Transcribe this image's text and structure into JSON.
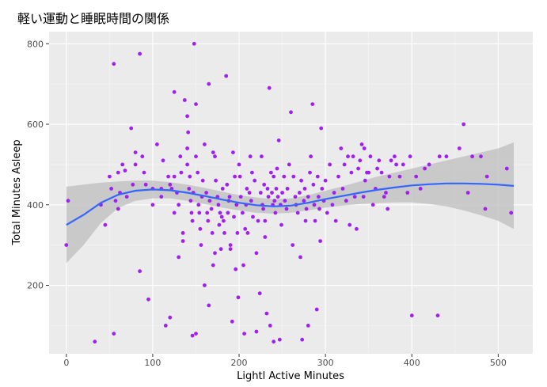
{
  "chart_data": {
    "type": "scatter",
    "title": "軽い運動と睡眠時間の関係",
    "xlabel": "Lightl Active Minutes",
    "ylabel": "Total Minutes Asleep",
    "xlim": [
      -20,
      540
    ],
    "ylim": [
      30,
      830
    ],
    "xticks": [
      0,
      100,
      200,
      300,
      400,
      500
    ],
    "yticks": [
      200,
      400,
      600,
      800
    ],
    "grid": true,
    "point_color": "#a020f0",
    "smooth_color": "#3366ff",
    "band_color": "#bdbdbd",
    "panel_background": "#ebebeb",
    "points": [
      [
        0,
        300
      ],
      [
        2,
        410
      ],
      [
        33,
        60
      ],
      [
        40,
        400
      ],
      [
        45,
        350
      ],
      [
        50,
        470
      ],
      [
        52,
        440
      ],
      [
        55,
        750
      ],
      [
        55,
        80
      ],
      [
        57,
        410
      ],
      [
        60,
        390
      ],
      [
        60,
        480
      ],
      [
        62,
        430
      ],
      [
        65,
        500
      ],
      [
        68,
        485
      ],
      [
        70,
        420
      ],
      [
        75,
        590
      ],
      [
        77,
        450
      ],
      [
        80,
        530
      ],
      [
        80,
        500
      ],
      [
        85,
        775
      ],
      [
        85,
        235
      ],
      [
        88,
        520
      ],
      [
        90,
        480
      ],
      [
        92,
        450
      ],
      [
        95,
        165
      ],
      [
        100,
        400
      ],
      [
        100,
        440
      ],
      [
        105,
        550
      ],
      [
        110,
        440
      ],
      [
        110,
        420
      ],
      [
        112,
        510
      ],
      [
        115,
        100
      ],
      [
        118,
        470
      ],
      [
        120,
        120
      ],
      [
        120,
        450
      ],
      [
        122,
        440
      ],
      [
        125,
        470
      ],
      [
        125,
        680
      ],
      [
        125,
        380
      ],
      [
        128,
        430
      ],
      [
        130,
        270
      ],
      [
        130,
        400
      ],
      [
        132,
        520
      ],
      [
        133,
        480
      ],
      [
        135,
        310
      ],
      [
        135,
        330
      ],
      [
        137,
        660
      ],
      [
        140,
        620
      ],
      [
        140,
        540
      ],
      [
        140,
        500
      ],
      [
        141,
        580
      ],
      [
        142,
        440
      ],
      [
        143,
        470
      ],
      [
        144,
        410
      ],
      [
        145,
        380
      ],
      [
        146,
        360
      ],
      [
        146,
        75
      ],
      [
        147,
        430
      ],
      [
        148,
        800
      ],
      [
        150,
        650
      ],
      [
        150,
        520
      ],
      [
        150,
        80
      ],
      [
        152,
        480
      ],
      [
        153,
        400
      ],
      [
        154,
        380
      ],
      [
        155,
        340
      ],
      [
        156,
        300
      ],
      [
        157,
        420
      ],
      [
        158,
        460
      ],
      [
        160,
        200
      ],
      [
        160,
        550
      ],
      [
        162,
        430
      ],
      [
        163,
        380
      ],
      [
        164,
        360
      ],
      [
        165,
        150
      ],
      [
        165,
        700
      ],
      [
        166,
        410
      ],
      [
        168,
        390
      ],
      [
        169,
        330
      ],
      [
        170,
        250
      ],
      [
        170,
        530
      ],
      [
        172,
        520
      ],
      [
        172,
        280
      ],
      [
        173,
        460
      ],
      [
        175,
        420
      ],
      [
        176,
        400
      ],
      [
        177,
        350
      ],
      [
        178,
        380
      ],
      [
        179,
        290
      ],
      [
        180,
        370
      ],
      [
        181,
        440
      ],
      [
        182,
        360
      ],
      [
        183,
        330
      ],
      [
        185,
        720
      ],
      [
        186,
        450
      ],
      [
        187,
        380
      ],
      [
        188,
        410
      ],
      [
        189,
        420
      ],
      [
        190,
        300
      ],
      [
        190,
        290
      ],
      [
        192,
        110
      ],
      [
        193,
        530
      ],
      [
        194,
        370
      ],
      [
        195,
        470
      ],
      [
        196,
        240
      ],
      [
        197,
        400
      ],
      [
        198,
        330
      ],
      [
        199,
        170
      ],
      [
        200,
        500
      ],
      [
        201,
        470
      ],
      [
        202,
        420
      ],
      [
        204,
        380
      ],
      [
        205,
        250
      ],
      [
        206,
        80
      ],
      [
        207,
        340
      ],
      [
        208,
        400
      ],
      [
        209,
        440
      ],
      [
        210,
        330
      ],
      [
        212,
        430
      ],
      [
        213,
        520
      ],
      [
        214,
        410
      ],
      [
        215,
        480
      ],
      [
        216,
        370
      ],
      [
        218,
        460
      ],
      [
        220,
        280
      ],
      [
        220,
        85
      ],
      [
        222,
        360
      ],
      [
        224,
        180
      ],
      [
        225,
        430
      ],
      [
        226,
        520
      ],
      [
        227,
        400
      ],
      [
        228,
        390
      ],
      [
        229,
        450
      ],
      [
        230,
        360
      ],
      [
        230,
        320
      ],
      [
        232,
        130
      ],
      [
        233,
        440
      ],
      [
        234,
        420
      ],
      [
        235,
        690
      ],
      [
        236,
        100
      ],
      [
        237,
        480
      ],
      [
        238,
        430
      ],
      [
        239,
        400
      ],
      [
        240,
        60
      ],
      [
        240,
        470
      ],
      [
        241,
        410
      ],
      [
        242,
        380
      ],
      [
        243,
        440
      ],
      [
        244,
        490
      ],
      [
        245,
        420
      ],
      [
        246,
        560
      ],
      [
        247,
        65
      ],
      [
        248,
        400
      ],
      [
        249,
        350
      ],
      [
        250,
        430
      ],
      [
        252,
        470
      ],
      [
        253,
        410
      ],
      [
        255,
        390
      ],
      [
        256,
        440
      ],
      [
        258,
        500
      ],
      [
        260,
        630
      ],
      [
        262,
        300
      ],
      [
        263,
        470
      ],
      [
        265,
        420
      ],
      [
        266,
        400
      ],
      [
        268,
        380
      ],
      [
        270,
        430
      ],
      [
        271,
        270
      ],
      [
        272,
        460
      ],
      [
        273,
        65
      ],
      [
        275,
        410
      ],
      [
        276,
        440
      ],
      [
        277,
        360
      ],
      [
        278,
        390
      ],
      [
        280,
        420
      ],
      [
        280,
        100
      ],
      [
        282,
        480
      ],
      [
        283,
        520
      ],
      [
        285,
        650
      ],
      [
        286,
        450
      ],
      [
        287,
        400
      ],
      [
        288,
        360
      ],
      [
        290,
        140
      ],
      [
        291,
        470
      ],
      [
        292,
        420
      ],
      [
        293,
        390
      ],
      [
        294,
        310
      ],
      [
        295,
        590
      ],
      [
        296,
        440
      ],
      [
        298,
        410
      ],
      [
        300,
        460
      ],
      [
        302,
        380
      ],
      [
        305,
        500
      ],
      [
        308,
        400
      ],
      [
        310,
        430
      ],
      [
        312,
        360
      ],
      [
        315,
        470
      ],
      [
        318,
        540
      ],
      [
        320,
        440
      ],
      [
        322,
        500
      ],
      [
        324,
        410
      ],
      [
        326,
        520
      ],
      [
        328,
        350
      ],
      [
        330,
        480
      ],
      [
        332,
        520
      ],
      [
        334,
        420
      ],
      [
        336,
        340
      ],
      [
        338,
        490
      ],
      [
        340,
        510
      ],
      [
        342,
        550
      ],
      [
        344,
        420
      ],
      [
        345,
        540
      ],
      [
        346,
        460
      ],
      [
        348,
        480
      ],
      [
        350,
        480
      ],
      [
        352,
        520
      ],
      [
        355,
        400
      ],
      [
        358,
        440
      ],
      [
        360,
        490
      ],
      [
        362,
        510
      ],
      [
        365,
        480
      ],
      [
        368,
        420
      ],
      [
        370,
        430
      ],
      [
        372,
        390
      ],
      [
        374,
        470
      ],
      [
        376,
        510
      ],
      [
        380,
        520
      ],
      [
        382,
        500
      ],
      [
        386,
        470
      ],
      [
        390,
        500
      ],
      [
        395,
        430
      ],
      [
        398,
        520
      ],
      [
        400,
        125
      ],
      [
        405,
        470
      ],
      [
        410,
        440
      ],
      [
        415,
        490
      ],
      [
        420,
        500
      ],
      [
        430,
        125
      ],
      [
        432,
        520
      ],
      [
        440,
        520
      ],
      [
        455,
        540
      ],
      [
        460,
        600
      ],
      [
        465,
        430
      ],
      [
        470,
        520
      ],
      [
        480,
        520
      ],
      [
        485,
        390
      ],
      [
        487,
        470
      ],
      [
        510,
        490
      ],
      [
        515,
        380
      ]
    ],
    "smooth_line": [
      [
        0,
        350
      ],
      [
        20,
        375
      ],
      [
        40,
        405
      ],
      [
        60,
        425
      ],
      [
        80,
        435
      ],
      [
        100,
        438
      ],
      [
        120,
        436
      ],
      [
        140,
        430
      ],
      [
        160,
        422
      ],
      [
        180,
        413
      ],
      [
        200,
        405
      ],
      [
        220,
        399
      ],
      [
        240,
        396
      ],
      [
        260,
        398
      ],
      [
        280,
        405
      ],
      [
        300,
        414
      ],
      [
        320,
        422
      ],
      [
        340,
        430
      ],
      [
        360,
        437
      ],
      [
        380,
        443
      ],
      [
        400,
        448
      ],
      [
        420,
        451
      ],
      [
        440,
        453
      ],
      [
        460,
        453
      ],
      [
        480,
        452
      ],
      [
        500,
        450
      ],
      [
        518,
        447
      ]
    ],
    "band_upper": [
      [
        0,
        445
      ],
      [
        20,
        450
      ],
      [
        40,
        455
      ],
      [
        60,
        458
      ],
      [
        80,
        460
      ],
      [
        100,
        460
      ],
      [
        120,
        456
      ],
      [
        140,
        450
      ],
      [
        160,
        442
      ],
      [
        180,
        433
      ],
      [
        200,
        424
      ],
      [
        220,
        418
      ],
      [
        240,
        414
      ],
      [
        260,
        416
      ],
      [
        280,
        424
      ],
      [
        300,
        435
      ],
      [
        320,
        446
      ],
      [
        340,
        458
      ],
      [
        360,
        470
      ],
      [
        380,
        480
      ],
      [
        400,
        490
      ],
      [
        420,
        500
      ],
      [
        440,
        510
      ],
      [
        460,
        520
      ],
      [
        480,
        530
      ],
      [
        500,
        540
      ],
      [
        518,
        555
      ]
    ],
    "band_lower": [
      [
        0,
        255
      ],
      [
        20,
        300
      ],
      [
        40,
        355
      ],
      [
        60,
        392
      ],
      [
        80,
        410
      ],
      [
        100,
        416
      ],
      [
        120,
        416
      ],
      [
        140,
        410
      ],
      [
        160,
        402
      ],
      [
        180,
        393
      ],
      [
        200,
        386
      ],
      [
        220,
        380
      ],
      [
        240,
        378
      ],
      [
        260,
        380
      ],
      [
        280,
        386
      ],
      [
        300,
        393
      ],
      [
        320,
        398
      ],
      [
        340,
        402
      ],
      [
        360,
        404
      ],
      [
        380,
        406
      ],
      [
        400,
        406
      ],
      [
        420,
        402
      ],
      [
        440,
        396
      ],
      [
        460,
        386
      ],
      [
        480,
        374
      ],
      [
        500,
        360
      ],
      [
        518,
        340
      ]
    ]
  }
}
